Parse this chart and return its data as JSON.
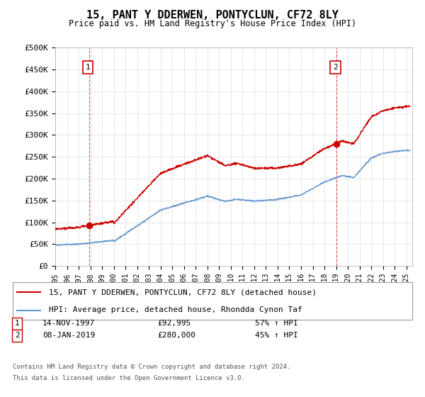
{
  "title": "15, PANT Y DDERWEN, PONTYCLUN, CF72 8LY",
  "subtitle": "Price paid vs. HM Land Registry's House Price Index (HPI)",
  "red_label": "15, PANT Y DDERWEN, PONTYCLUN, CF72 8LY (detached house)",
  "blue_label": "HPI: Average price, detached house, Rhondda Cynon Taf",
  "sale1_date": "14-NOV-1997",
  "sale1_price": 92995,
  "sale1_hpi": "57% ↑ HPI",
  "sale2_date": "08-JAN-2019",
  "sale2_price": 280000,
  "sale2_hpi": "45% ↑ HPI",
  "footer_line1": "Contains HM Land Registry data © Crown copyright and database right 2024.",
  "footer_line2": "This data is licensed under the Open Government Licence v3.0.",
  "ylim": [
    0,
    500000
  ],
  "yticks": [
    0,
    50000,
    100000,
    150000,
    200000,
    250000,
    300000,
    350000,
    400000,
    450000,
    500000
  ],
  "ytick_labels": [
    "£0",
    "£50K",
    "£100K",
    "£150K",
    "£200K",
    "£250K",
    "£300K",
    "£350K",
    "£400K",
    "£450K",
    "£500K"
  ],
  "xmin": 1995.0,
  "xmax": 2025.5,
  "xticks": [
    1995,
    1996,
    1997,
    1998,
    1999,
    2000,
    2001,
    2002,
    2003,
    2004,
    2005,
    2006,
    2007,
    2008,
    2009,
    2010,
    2011,
    2012,
    2013,
    2014,
    2015,
    2016,
    2017,
    2018,
    2019,
    2020,
    2021,
    2022,
    2023,
    2024,
    2025
  ],
  "red_color": "#cc0000",
  "blue_color": "#6699cc",
  "dot_color": "#cc0000",
  "dashed_color": "#cc0000",
  "background_color": "#ffffff",
  "grid_color": "#dddddd",
  "sale1_t": 1997.875,
  "sale2_t": 2019.04
}
